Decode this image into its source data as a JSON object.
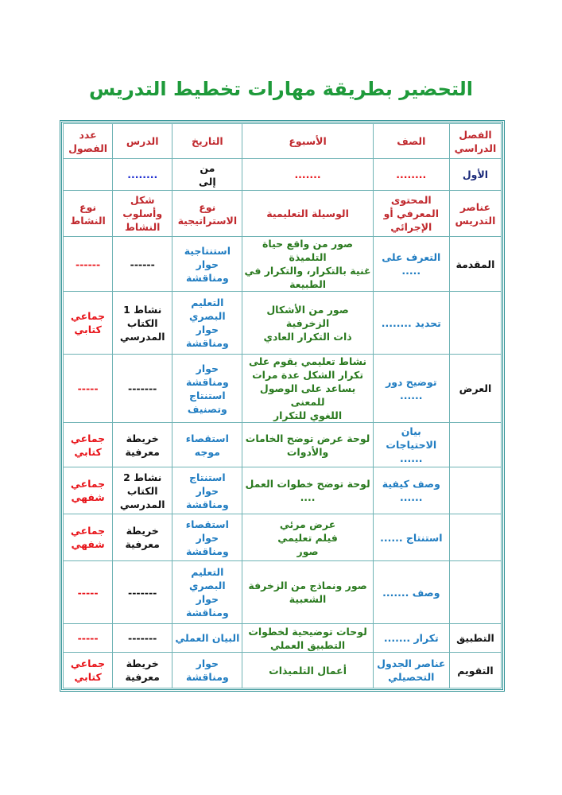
{
  "title": "التحضير بطريقة مهارات تخطيط التدريس",
  "header": [
    "الفصل\nالدراسي",
    "الصف",
    "الأسبوع",
    "التاريخ",
    "الدرس",
    "عدد\nالفصول"
  ],
  "info_row": [
    "الأول",
    "........",
    ".......",
    "من\nإلى",
    "........",
    ""
  ],
  "subheader": [
    "عناصر\nالتدريس",
    "المحتوى\nالمعرفي أو\nالإجرائي",
    "الوسيلة التعليمية",
    "نوع\nالاستراتيجية",
    "شكل\nوأسلوب\nالنشاط",
    "نوع\nالنشاط"
  ],
  "rows": [
    [
      "المقدمة",
      "التعرف على\n.....",
      "صور من واقع حياة التلميذة\nغنية بالتكرار، والتكرار في\nالطبيعة",
      "استنتاجية\nحوار\nومناقشة",
      "------",
      "------"
    ],
    [
      "",
      "تحديد ........",
      "صور من الأشكال الزخرفية\nذات التكرار العادي",
      "التعليم\nالبصري\nحوار\nومناقشة",
      "نشاط 1\nالكتاب\nالمدرسي",
      "جماعي\nكتابي"
    ],
    [
      "العرض",
      "توضيح دور\n......",
      "نشاط تعليمي يقوم على\nتكرار الشكل عدة مرات\nيساعد على الوصول للمعنى\nاللغوي للتكرار",
      "حوار\nومناقشة\nاستنتاج\nوتصنيف",
      "-------",
      "-----"
    ],
    [
      "",
      "بيان\nالاحتياجات\n......",
      "لوحة عرض توضح الخامات\nوالأدوات",
      "استقصاء\nموجه",
      "خريطة\nمعرفية",
      "جماعي\nكتابي"
    ],
    [
      "",
      "وصف كيفية\n......",
      "لوحة توضح خطوات العمل\n....",
      "استنتاج\nحوار\nومناقشة",
      "نشاط 2\nالكتاب\nالمدرسي",
      "جماعي\nشفهي"
    ],
    [
      "",
      "استنتاج ......",
      "عرض مرئي\nفيلم تعليمي\nصور",
      "استقصاء\nحوار\nومناقشة",
      "خريطة\nمعرفية",
      "جماعي\nشفهي"
    ],
    [
      "",
      "وصف .......",
      "صور ونماذج من الزخرفة\nالشعبية",
      "التعليم\nالبصري\nحوار\nومناقشة",
      "-------",
      "-----"
    ],
    [
      "التطبيق",
      "تكرار .......",
      "لوحات توضيحية لخطوات\nالتطبيق العملي",
      "البيان العملي",
      "-------",
      "-----"
    ],
    [
      "التقويم",
      "عناصر الجدول\nالتحصيلي",
      "أعمال التلميذات",
      "حوار\nومناقشة",
      "خريطة\nمعرفية",
      "جماعي\nكتابي"
    ]
  ],
  "colors": {
    "title": "#1e9a3a",
    "header": "#c0282d",
    "content": "#1f7cc1",
    "medium": "#2a7a1f",
    "activity_type": "#e8141a",
    "border": "#2e9194"
  }
}
